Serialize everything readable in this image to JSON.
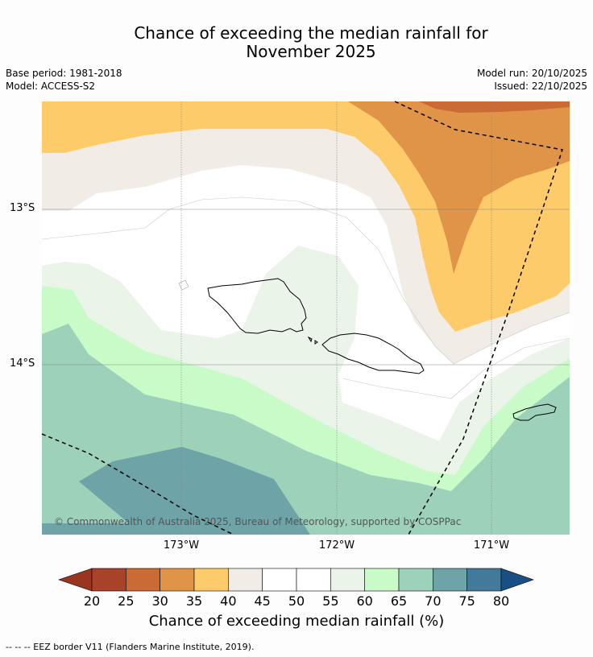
{
  "title": {
    "line1": "Chance of exceeding the median rainfall for",
    "line2": "November 2025"
  },
  "meta": {
    "base_period": "Base period: 1981-2018",
    "model": "Model: ACCESS-S2",
    "model_run": "Model run: 20/10/2025",
    "issued": "Issued: 22/10/2025"
  },
  "axes": {
    "lat_labels": [
      "13°S",
      "14°S"
    ],
    "lon_labels": [
      "173°W",
      "172°W",
      "171°W"
    ]
  },
  "copyright": "© Commonwealth of Australia 2025, Bureau of Meteorology, supported by COSPPac",
  "colorbar": {
    "ticks": [
      "20",
      "25",
      "30",
      "35",
      "40",
      "45",
      "50",
      "55",
      "60",
      "65",
      "70",
      "75",
      "80"
    ],
    "title": "Chance of exceeding median rainfall (%)",
    "colors": [
      "#a8432a",
      "#ca6a35",
      "#e09447",
      "#fecb6a",
      "#f1ede6",
      "#ffffff",
      "#ffffff",
      "#eaf4e8",
      "#c8fbc8",
      "#9ed1ba",
      "#6ea3a8",
      "#437a9b"
    ],
    "under_color": "#9a3520",
    "over_color": "#1a4f86"
  },
  "footnote": "--  --  -- EEZ border V11 (Flanders Marine Institute, 2019)."
}
